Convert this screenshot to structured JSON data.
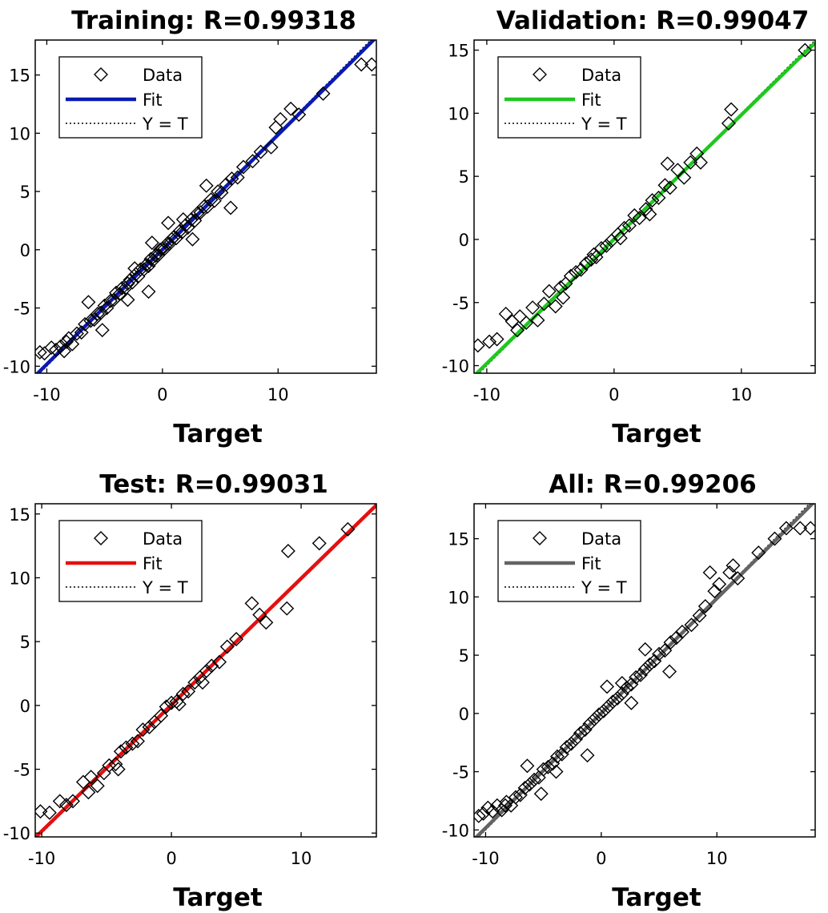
{
  "chart_data": [
    {
      "type": "scatter",
      "title": "Training: R=0.99318",
      "xlabel": "Target",
      "ylabel": "",
      "xlim": [
        -11,
        18.5
      ],
      "ylim": [
        -10.6,
        18.0
      ],
      "xticks": [
        -10,
        0,
        10
      ],
      "yticks": [
        -10,
        -5,
        0,
        5,
        10,
        15
      ],
      "grid": false,
      "legend": {
        "placement": "top-left",
        "entries": [
          "Data",
          "Fit",
          "Y = T"
        ]
      },
      "fit": {
        "slope": 0.985,
        "intercept": 0.02,
        "color": "#0a1ab4"
      },
      "series": [
        {
          "name": "Data",
          "marker": "diamond",
          "x": [
            -10.6,
            -10.2,
            -9.6,
            -9.2,
            -8.8,
            -8.5,
            -8.1,
            -7.8,
            -7.4,
            -7.0,
            -6.7,
            -6.2,
            -5.9,
            -5.6,
            -5.3,
            -5.0,
            -4.8,
            -4.5,
            -4.2,
            -4.0,
            -3.7,
            -3.5,
            -3.2,
            -3.0,
            -2.8,
            -2.6,
            -2.3,
            -2.1,
            -1.9,
            -1.6,
            -1.4,
            -1.2,
            -1.0,
            -0.8,
            -0.6,
            -0.4,
            -0.2,
            0.0,
            0.2,
            0.4,
            0.6,
            0.8,
            1.0,
            1.2,
            1.5,
            1.7,
            2.0,
            2.2,
            2.5,
            2.8,
            3.0,
            3.3,
            3.6,
            3.9,
            4.2,
            4.5,
            4.8,
            5.1,
            5.5,
            6.0,
            6.5,
            7.0,
            7.8,
            8.5,
            9.4,
            10.2,
            11.1,
            11.8,
            13.9,
            17.2,
            18.1,
            -6.4,
            -5.2,
            -3.0,
            -1.2,
            0.5,
            2.6,
            -0.9,
            5.9,
            9.8,
            -8.3,
            -2.4,
            1.8,
            3.8
          ],
          "y": [
            -8.8,
            -8.9,
            -8.4,
            -8.6,
            -8.3,
            -8.7,
            -7.6,
            -8.1,
            -7.2,
            -7.1,
            -6.4,
            -6.1,
            -6.0,
            -5.5,
            -5.4,
            -4.8,
            -5.0,
            -4.4,
            -4.3,
            -3.7,
            -3.8,
            -3.3,
            -3.3,
            -2.9,
            -2.6,
            -2.8,
            -2.1,
            -2.3,
            -1.7,
            -1.7,
            -1.3,
            -1.4,
            -0.8,
            -0.9,
            -0.5,
            -0.5,
            0.0,
            0.1,
            0.1,
            0.5,
            0.5,
            0.9,
            1.1,
            1.0,
            1.6,
            1.5,
            2.1,
            1.9,
            2.6,
            2.5,
            3.1,
            3.2,
            3.7,
            3.7,
            4.3,
            4.2,
            5.0,
            4.9,
            5.6,
            6.1,
            6.2,
            7.1,
            7.6,
            8.4,
            8.8,
            11.2,
            12.1,
            11.6,
            13.4,
            15.9,
            15.9,
            -4.5,
            -6.9,
            -4.3,
            -3.6,
            2.3,
            0.9,
            0.6,
            3.6,
            10.5,
            -7.9,
            -1.6,
            2.6,
            5.5
          ]
        }
      ]
    },
    {
      "type": "scatter",
      "title": "Validation: R=0.99047",
      "xlabel": "Target",
      "ylabel": "",
      "xlim": [
        -11,
        15.8
      ],
      "ylim": [
        -10.6,
        15.8
      ],
      "xticks": [
        -10,
        0,
        10
      ],
      "yticks": [
        -10,
        -5,
        0,
        5,
        10,
        15
      ],
      "grid": false,
      "legend": {
        "placement": "top-left",
        "entries": [
          "Data",
          "Fit",
          "Y = T"
        ]
      },
      "fit": {
        "slope": 0.985,
        "intercept": 0.02,
        "color": "#1ec81e"
      },
      "series": [
        {
          "name": "Data",
          "marker": "diamond",
          "x": [
            -10.7,
            -9.8,
            -9.2,
            -8.5,
            -8.0,
            -7.4,
            -6.9,
            -6.4,
            -6.0,
            -5.5,
            -5.1,
            -4.6,
            -4.2,
            -3.8,
            -3.4,
            -3.0,
            -2.6,
            -2.2,
            -1.8,
            -1.4,
            -1.0,
            -0.6,
            -0.2,
            0.3,
            0.8,
            1.2,
            1.6,
            2.0,
            2.5,
            3.0,
            3.5,
            4.0,
            4.4,
            5.0,
            5.5,
            6.0,
            6.5,
            6.8,
            9.0,
            9.2,
            15.0,
            -7.6,
            -4.0,
            0.5,
            2.8,
            4.2,
            -1.6
          ],
          "y": [
            -8.4,
            -8.1,
            -7.9,
            -5.9,
            -6.5,
            -6.1,
            -6.6,
            -5.4,
            -6.4,
            -5.1,
            -4.1,
            -5.3,
            -3.8,
            -3.5,
            -2.9,
            -2.6,
            -2.4,
            -1.9,
            -1.6,
            -1.4,
            -0.7,
            -0.5,
            -0.1,
            0.4,
            0.9,
            1.1,
            1.9,
            1.7,
            2.4,
            3.1,
            3.3,
            4.3,
            4.1,
            5.5,
            4.9,
            6.1,
            6.8,
            6.1,
            9.2,
            10.3,
            15.0,
            -7.2,
            -4.6,
            0.1,
            2.0,
            6.0,
            -1.2
          ]
        }
      ]
    },
    {
      "type": "scatter",
      "title": "Test: R=0.99031",
      "xlabel": "Target",
      "ylabel": "",
      "xlim": [
        -10.5,
        15.8
      ],
      "ylim": [
        -10.3,
        15.8
      ],
      "xticks": [
        -10,
        0,
        10
      ],
      "yticks": [
        -10,
        -5,
        0,
        5,
        10,
        15
      ],
      "grid": false,
      "legend": {
        "placement": "top-left",
        "entries": [
          "Data",
          "Fit",
          "Y = T"
        ]
      },
      "fit": {
        "slope": 0.99,
        "intercept": 0.05,
        "color": "#e60f0f"
      },
      "series": [
        {
          "name": "Data",
          "marker": "diamond",
          "x": [
            -10.1,
            -9.4,
            -8.6,
            -8.1,
            -7.6,
            -6.8,
            -6.4,
            -5.7,
            -5.2,
            -4.8,
            -4.3,
            -3.9,
            -3.5,
            -3.0,
            -2.6,
            -2.2,
            -1.7,
            -1.3,
            -0.8,
            -0.4,
            0.0,
            0.4,
            0.9,
            1.3,
            1.8,
            2.2,
            2.7,
            3.1,
            3.7,
            4.3,
            5.0,
            6.2,
            6.8,
            7.3,
            8.9,
            9.0,
            11.4,
            13.6,
            -6.2,
            -4.1,
            0.6,
            2.4
          ],
          "y": [
            -8.3,
            -8.4,
            -7.5,
            -7.8,
            -7.5,
            -6.0,
            -6.8,
            -6.3,
            -5.3,
            -4.7,
            -4.6,
            -3.6,
            -3.3,
            -3.0,
            -2.8,
            -1.9,
            -1.7,
            -1.3,
            -0.8,
            -0.1,
            0.2,
            0.3,
            0.9,
            1.1,
            1.8,
            2.2,
            2.7,
            3.1,
            3.4,
            4.6,
            5.2,
            8.0,
            7.1,
            6.5,
            7.6,
            12.1,
            12.7,
            13.8,
            -5.6,
            -5.0,
            0.1,
            1.8
          ]
        }
      ]
    },
    {
      "type": "scatter",
      "title": "All: R=0.99206",
      "xlabel": "Target",
      "ylabel": "",
      "xlim": [
        -11,
        18.5
      ],
      "ylim": [
        -10.6,
        18.0
      ],
      "xticks": [
        -10,
        0,
        10
      ],
      "yticks": [
        -10,
        -5,
        0,
        5,
        10,
        15
      ],
      "grid": false,
      "legend": {
        "placement": "top-left",
        "entries": [
          "Data",
          "Fit",
          "Y = T"
        ]
      },
      "fit": {
        "slope": 0.985,
        "intercept": 0.02,
        "color": "#646464"
      },
      "series": [
        {
          "name": "Data",
          "marker": "diamond",
          "x": [
            -10.6,
            -10.2,
            -9.8,
            -9.4,
            -9.0,
            -8.6,
            -8.2,
            -7.8,
            -7.4,
            -7.0,
            -6.6,
            -6.2,
            -5.8,
            -5.4,
            -5.0,
            -4.6,
            -4.2,
            -3.8,
            -3.4,
            -3.0,
            -2.6,
            -2.2,
            -1.8,
            -1.4,
            -1.0,
            -0.6,
            -0.2,
            0.2,
            0.6,
            1.0,
            1.4,
            1.8,
            2.2,
            2.6,
            3.0,
            3.4,
            3.8,
            4.2,
            4.6,
            5.0,
            5.5,
            6.0,
            6.5,
            7.0,
            7.8,
            8.5,
            9.0,
            9.4,
            10.2,
            11.1,
            11.4,
            11.8,
            13.6,
            15.0,
            16.0,
            17.2,
            18.1,
            -6.4,
            -5.2,
            -1.2,
            0.5,
            2.6,
            5.9,
            9.8,
            -8.3,
            3.8,
            -3.9,
            1.8
          ],
          "y": [
            -8.8,
            -8.6,
            -8.1,
            -8.4,
            -7.9,
            -8.3,
            -7.6,
            -7.9,
            -7.2,
            -7.0,
            -6.4,
            -6.1,
            -5.7,
            -5.5,
            -4.8,
            -4.6,
            -4.3,
            -3.7,
            -3.5,
            -2.9,
            -2.6,
            -2.2,
            -1.7,
            -1.4,
            -0.9,
            -0.5,
            -0.1,
            0.2,
            0.6,
            1.0,
            1.3,
            1.7,
            2.2,
            2.5,
            3.1,
            3.3,
            3.8,
            4.2,
            4.5,
            5.1,
            5.4,
            6.1,
            6.5,
            7.0,
            7.6,
            8.4,
            9.2,
            12.1,
            11.1,
            12.1,
            12.7,
            11.6,
            13.8,
            15.0,
            15.9,
            15.9,
            15.9,
            -4.5,
            -6.9,
            -3.6,
            2.3,
            0.9,
            3.6,
            10.5,
            -7.9,
            5.5,
            -5.0,
            2.6
          ]
        }
      ]
    }
  ]
}
